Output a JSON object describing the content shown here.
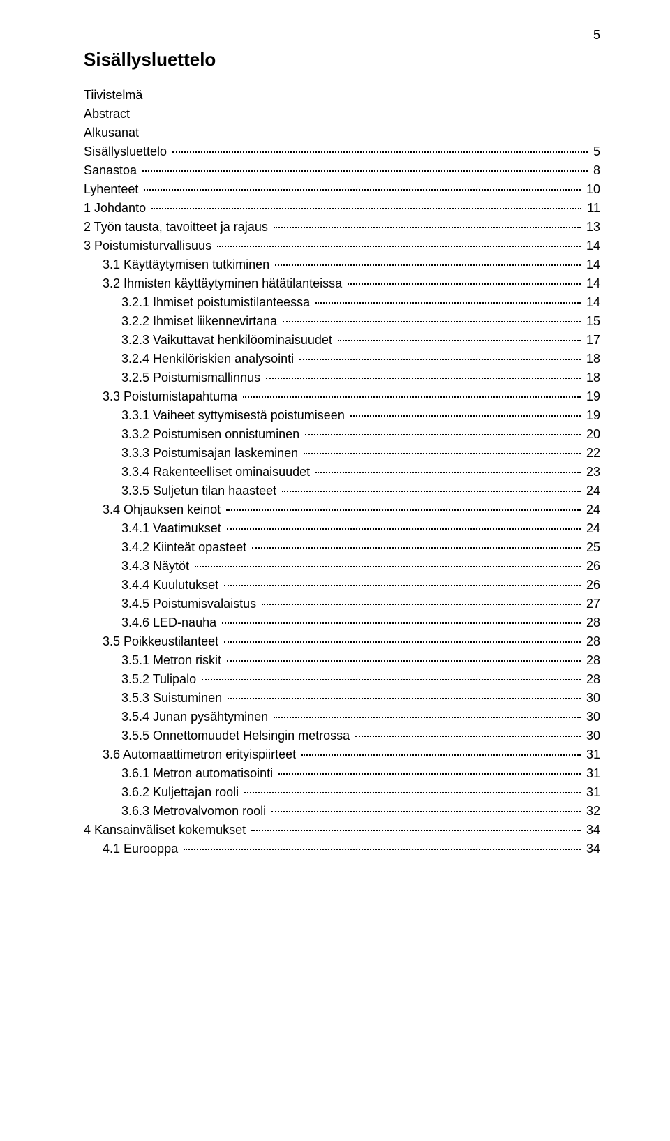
{
  "page_number": "5",
  "title": "Sisällysluettelo",
  "front_matter": [
    "Tiivistelmä",
    "Abstract",
    "Alkusanat"
  ],
  "toc": [
    {
      "label": "Sisällysluettelo",
      "page": "5",
      "level": 0
    },
    {
      "label": "Sanastoa",
      "page": "8",
      "level": 0
    },
    {
      "label": "Lyhenteet",
      "page": "10",
      "level": 0
    },
    {
      "label": "1  Johdanto",
      "page": "11",
      "level": 0
    },
    {
      "label": "2  Työn tausta, tavoitteet ja rajaus",
      "page": "13",
      "level": 0
    },
    {
      "label": "3  Poistumisturvallisuus",
      "page": "14",
      "level": 0
    },
    {
      "label": "3.1  Käyttäytymisen tutkiminen",
      "page": "14",
      "level": 1
    },
    {
      "label": "3.2  Ihmisten käyttäytyminen hätätilanteissa",
      "page": "14",
      "level": 1
    },
    {
      "label": "3.2.1  Ihmiset poistumistilanteessa",
      "page": "14",
      "level": 2
    },
    {
      "label": "3.2.2  Ihmiset liikennevirtana",
      "page": "15",
      "level": 2
    },
    {
      "label": "3.2.3  Vaikuttavat henkilöominaisuudet",
      "page": "17",
      "level": 2
    },
    {
      "label": "3.2.4  Henkilöriskien analysointi",
      "page": "18",
      "level": 2
    },
    {
      "label": "3.2.5  Poistumismallinnus",
      "page": "18",
      "level": 2
    },
    {
      "label": "3.3  Poistumistapahtuma",
      "page": "19",
      "level": 1
    },
    {
      "label": "3.3.1  Vaiheet syttymisestä poistumiseen",
      "page": "19",
      "level": 2
    },
    {
      "label": "3.3.2  Poistumisen onnistuminen",
      "page": "20",
      "level": 2
    },
    {
      "label": "3.3.3  Poistumisajan laskeminen",
      "page": "22",
      "level": 2
    },
    {
      "label": "3.3.4  Rakenteelliset ominaisuudet",
      "page": "23",
      "level": 2
    },
    {
      "label": "3.3.5  Suljetun tilan haasteet",
      "page": "24",
      "level": 2
    },
    {
      "label": "3.4  Ohjauksen keinot",
      "page": "24",
      "level": 1
    },
    {
      "label": "3.4.1  Vaatimukset",
      "page": "24",
      "level": 2
    },
    {
      "label": "3.4.2  Kiinteät opasteet",
      "page": "25",
      "level": 2
    },
    {
      "label": "3.4.3  Näytöt",
      "page": "26",
      "level": 2
    },
    {
      "label": "3.4.4  Kuulutukset",
      "page": "26",
      "level": 2
    },
    {
      "label": "3.4.5  Poistumisvalaistus",
      "page": "27",
      "level": 2
    },
    {
      "label": "3.4.6  LED-nauha",
      "page": "28",
      "level": 2
    },
    {
      "label": "3.5  Poikkeustilanteet",
      "page": "28",
      "level": 1
    },
    {
      "label": "3.5.1  Metron riskit",
      "page": "28",
      "level": 2
    },
    {
      "label": "3.5.2  Tulipalo",
      "page": "28",
      "level": 2
    },
    {
      "label": "3.5.3  Suistuminen",
      "page": "30",
      "level": 2
    },
    {
      "label": "3.5.4  Junan pysähtyminen",
      "page": "30",
      "level": 2
    },
    {
      "label": "3.5.5  Onnettomuudet Helsingin metrossa",
      "page": "30",
      "level": 2
    },
    {
      "label": "3.6  Automaattimetron erityispiirteet",
      "page": "31",
      "level": 1
    },
    {
      "label": "3.6.1  Metron automatisointi",
      "page": "31",
      "level": 2
    },
    {
      "label": "3.6.2  Kuljettajan rooli",
      "page": "31",
      "level": 2
    },
    {
      "label": "3.6.3  Metrovalvomon rooli",
      "page": "32",
      "level": 2
    },
    {
      "label": "4  Kansainväliset kokemukset",
      "page": "34",
      "level": 0
    },
    {
      "label": "4.1  Eurooppa",
      "page": "34",
      "level": 1
    }
  ]
}
